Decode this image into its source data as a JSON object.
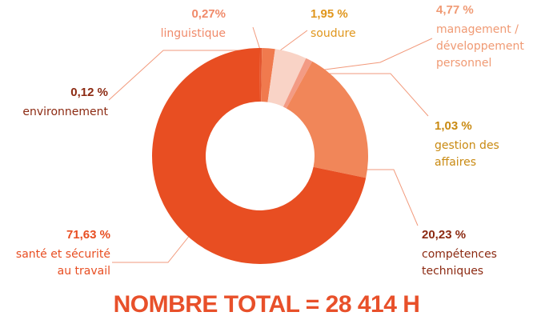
{
  "chart_data": {
    "type": "donut",
    "categories": [
      "linguistique",
      "soudure",
      "management /\ndéveloppement\npersonnel",
      "gestion des\naffaires",
      "compétences\ntechniques",
      "santé et sécurité\nau travail",
      "environnement"
    ],
    "values": [
      0.27,
      1.95,
      4.77,
      1.03,
      20.23,
      71.63,
      0.12
    ],
    "value_labels": [
      "0,27%",
      "1,95 %",
      "4,77 %",
      "1,03 %",
      "20,23 %",
      "71,63 %",
      "0,12 %"
    ],
    "colors": [
      "#e2552f",
      "#f07a4e",
      "#f9d3c6",
      "#f39b84",
      "#f18659",
      "#e84e22",
      "#e84e22"
    ],
    "label_colors": [
      "#f08a6a",
      "#e0961c",
      "#f09a74",
      "#c98a12",
      "#8c2a12",
      "#e84e22",
      "#8c2a12"
    ],
    "annotation": "NOMBRE TOTAL  =  28 414 H"
  }
}
